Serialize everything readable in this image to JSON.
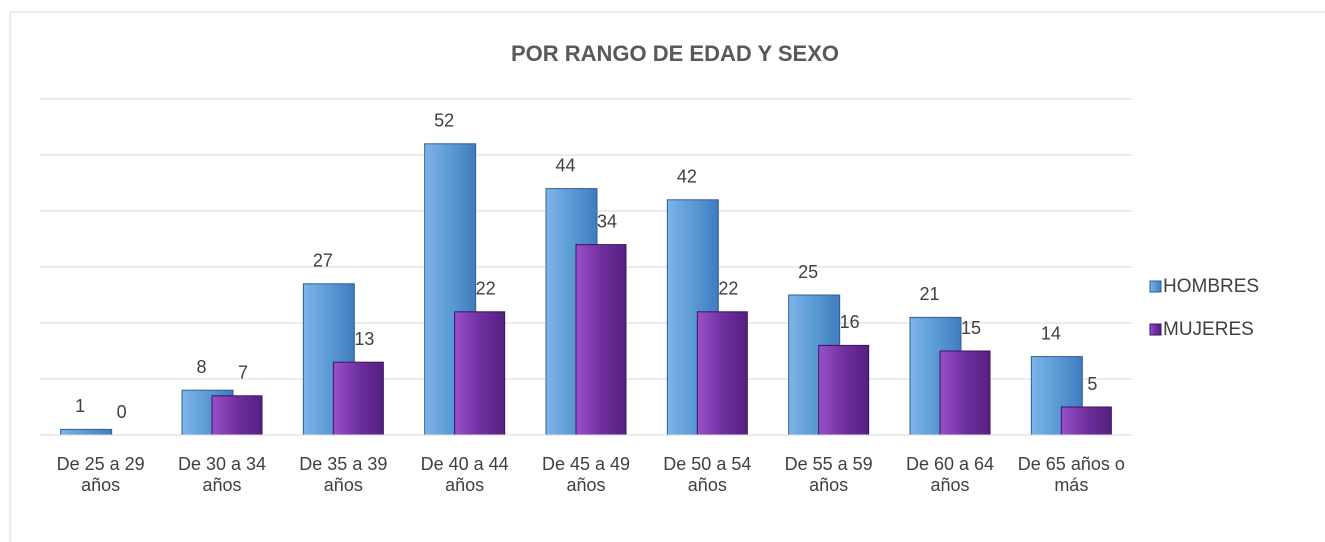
{
  "chart_data": {
    "type": "bar",
    "title": "POR RANGO DE EDAD Y SEXO",
    "categories": [
      "De 25 a 29 años",
      "De 30 a 34 años",
      "De 35 a 39 años",
      "De 40 a 44 años",
      "De 45 a 49 años",
      "De 50 a 54 años",
      "De 55 a 59 años",
      "De 60 a 64 años",
      "De 65 años o más"
    ],
    "series": [
      {
        "name": "HOMBRES",
        "color": "#5b9bd5",
        "values": [
          1,
          8,
          27,
          52,
          44,
          42,
          25,
          21,
          14
        ]
      },
      {
        "name": "MUJERES",
        "color": "#7030a0",
        "values": [
          0,
          7,
          13,
          22,
          34,
          22,
          16,
          15,
          5
        ]
      }
    ],
    "ylim": [
      0,
      60
    ],
    "yticks": [
      0,
      10,
      20,
      30,
      40,
      50,
      60
    ],
    "grid": true,
    "legend": "right"
  }
}
